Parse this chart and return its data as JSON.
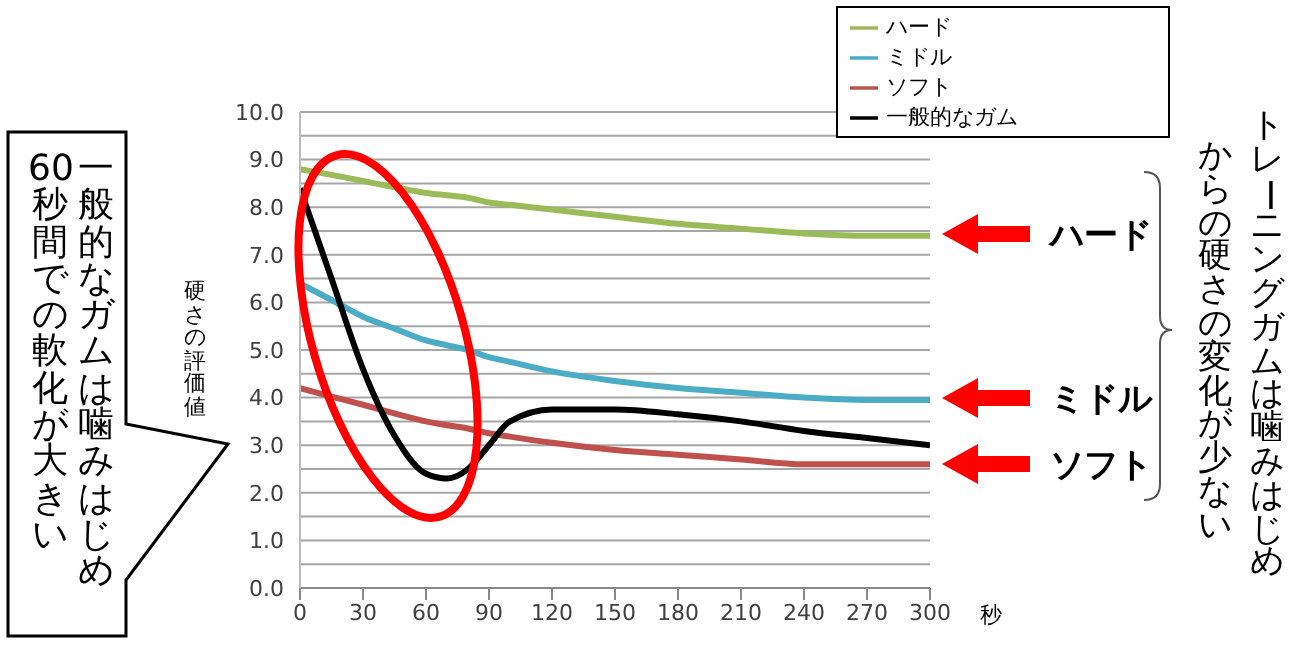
{
  "chart_data": {
    "type": "line",
    "ylabel": "硬さの評価値",
    "xlabel": "秒",
    "x": [
      0,
      15,
      30,
      45,
      60,
      70,
      80,
      90,
      100,
      120,
      150,
      180,
      210,
      240,
      270,
      300
    ],
    "series": [
      {
        "name": "ハード",
        "color": "#9bbb59",
        "values": [
          8.8,
          8.68,
          8.55,
          8.42,
          8.3,
          8.25,
          8.2,
          8.1,
          8.05,
          7.95,
          7.8,
          7.65,
          7.55,
          7.45,
          7.4,
          7.4
        ]
      },
      {
        "name": "ミドル",
        "color": "#4bacc6",
        "values": [
          6.4,
          6.05,
          5.7,
          5.45,
          5.2,
          5.1,
          5.0,
          4.85,
          4.75,
          4.55,
          4.35,
          4.2,
          4.1,
          4.0,
          3.95,
          3.95
        ]
      },
      {
        "name": "ソフト",
        "color": "#c0504d",
        "values": [
          4.2,
          4.02,
          3.85,
          3.67,
          3.5,
          3.42,
          3.35,
          3.25,
          3.18,
          3.05,
          2.9,
          2.8,
          2.7,
          2.6,
          2.6,
          2.6
        ]
      },
      {
        "name": "一般的なガム",
        "color": "#000000",
        "values": [
          8.4,
          6.5,
          4.6,
          3.2,
          2.4,
          2.3,
          2.5,
          3.0,
          3.5,
          3.75,
          3.75,
          3.65,
          3.5,
          3.3,
          3.15,
          3.0
        ]
      }
    ],
    "xlim": [
      0,
      300
    ],
    "xticks": [
      0,
      30,
      60,
      90,
      120,
      150,
      180,
      210,
      240,
      270,
      300
    ],
    "ylim": [
      0,
      10
    ],
    "yticks": [
      {
        "value": 0,
        "label": "0.0"
      },
      {
        "value": 0.5,
        "label": null
      },
      {
        "value": 1,
        "label": "1.0"
      },
      {
        "value": 1.5,
        "label": null
      },
      {
        "value": 2,
        "label": "2.0"
      },
      {
        "value": 2.5,
        "label": null
      },
      {
        "value": 3,
        "label": "3.0"
      },
      {
        "value": 3.5,
        "label": null
      },
      {
        "value": 4,
        "label": "4.0"
      },
      {
        "value": 4.5,
        "label": null
      },
      {
        "value": 5,
        "label": "5.0"
      },
      {
        "value": 5.5,
        "label": null
      },
      {
        "value": 6,
        "label": "6.0"
      },
      {
        "value": 6.5,
        "label": null
      },
      {
        "value": 7,
        "label": "7.0"
      },
      {
        "value": 7.5,
        "label": null
      },
      {
        "value": 8,
        "label": "8.0"
      },
      {
        "value": 8.5,
        "label": null
      },
      {
        "value": 9,
        "label": "9.0"
      },
      {
        "value": 9.5,
        "label": null
      },
      {
        "value": 10,
        "label": "10.0"
      }
    ],
    "grid": "y",
    "legend": "top right",
    "marker": "none",
    "line_style": "solid",
    "annotations": [
      "一般的なガムは噛みはじめ",
      "60秒間での軟化が大きい",
      "ハード",
      "ミドル",
      "ソフト",
      "トレーニングガムは噛みはじめ",
      "からの硬さの変化が少ない"
    ]
  }
}
